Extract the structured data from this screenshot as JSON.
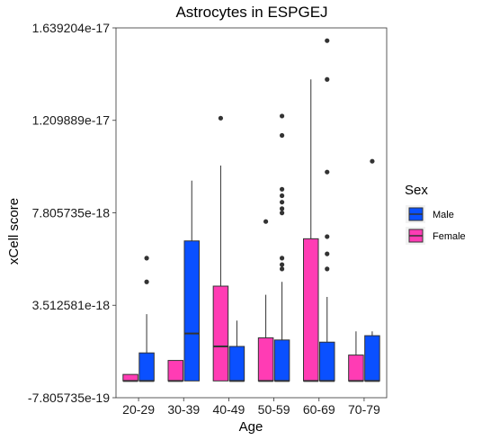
{
  "chart_data": {
    "type": "boxplot",
    "title": "Astrocytes in ESPGEJ",
    "xlabel": "Age",
    "ylabel": "xCell score",
    "y_tick_labels": [
      "-7.805735e-19",
      "3.512581e-18",
      "7.805735e-18",
      "1.209889e-17",
      "1.639204e-17"
    ],
    "y_tick_values": [
      -7.805735e-19,
      3.512581e-18,
      7.805735e-18,
      1.209889e-17,
      1.639204e-17
    ],
    "ylim": [
      -7.805735e-19,
      1.639204e-17
    ],
    "grid": false,
    "categories": [
      "20-29",
      "30-39",
      "40-49",
      "50-59",
      "60-69",
      "70-79"
    ],
    "legend": {
      "title": "Sex",
      "placement": "right",
      "entries": [
        {
          "label": "Male",
          "color": "#0a50ff"
        },
        {
          "label": "Female",
          "color": "#ff3cb4"
        }
      ]
    },
    "series": [
      {
        "name": "Female",
        "color": "#ff3cb4",
        "boxes": [
          {
            "category": "20-29",
            "whisker_low": 0,
            "q1": 0,
            "median": 0,
            "q3": 3e-19,
            "whisker_high": 3e-19,
            "outliers": []
          },
          {
            "category": "30-39",
            "whisker_low": 0,
            "q1": 0,
            "median": 0,
            "q3": 9.5e-19,
            "whisker_high": 9.5e-19,
            "outliers": []
          },
          {
            "category": "40-49",
            "whisker_low": 0,
            "q1": 0,
            "median": 1.6e-18,
            "q3": 4.4e-18,
            "whisker_high": 1e-17,
            "outliers": [
              1.22e-17
            ]
          },
          {
            "category": "50-59",
            "whisker_low": 0,
            "q1": 0,
            "median": 0,
            "q3": 2e-18,
            "whisker_high": 4e-18,
            "outliers": [
              7.4e-18
            ]
          },
          {
            "category": "60-69",
            "whisker_low": 0,
            "q1": 0,
            "median": 0,
            "q3": 6.6e-18,
            "whisker_high": 1.4e-17,
            "outliers": []
          },
          {
            "category": "70-79",
            "whisker_low": 0,
            "q1": 0,
            "median": 0,
            "q3": 1.2e-18,
            "whisker_high": 2.3e-18,
            "outliers": []
          }
        ]
      },
      {
        "name": "Male",
        "color": "#0a50ff",
        "boxes": [
          {
            "category": "20-29",
            "whisker_low": 0,
            "q1": 0,
            "median": 0,
            "q3": 1.3e-18,
            "whisker_high": 3.1e-18,
            "outliers": [
              5.7e-18,
              4.6e-18
            ]
          },
          {
            "category": "30-39",
            "whisker_low": 0,
            "q1": 0,
            "median": 2.2e-18,
            "q3": 6.5e-18,
            "whisker_high": 9.3e-18,
            "outliers": []
          },
          {
            "category": "40-49",
            "whisker_low": 0,
            "q1": 0,
            "median": 0,
            "q3": 1.6e-18,
            "whisker_high": 2.8e-18,
            "outliers": []
          },
          {
            "category": "50-59",
            "whisker_low": 0,
            "q1": 0,
            "median": 0,
            "q3": 1.9e-18,
            "whisker_high": 4.6e-18,
            "outliers": [
              1.23e-17,
              1.14e-17,
              8.9e-18,
              8.6e-18,
              8.3e-18,
              8e-18,
              7.8e-18,
              5.7e-18,
              5.4e-18,
              5.2e-18
            ]
          },
          {
            "category": "60-69",
            "whisker_low": 0,
            "q1": 0,
            "median": 0,
            "q3": 1.8e-18,
            "whisker_high": 3.9e-18,
            "outliers": [
              1.58e-17,
              1.4e-17,
              9.7e-18,
              6.7e-18,
              5.9e-18,
              5.2e-18
            ]
          },
          {
            "category": "70-79",
            "whisker_low": 0,
            "q1": 0,
            "median": 0,
            "q3": 2.1e-18,
            "whisker_high": 2.3e-18,
            "outliers": [
              1.02e-17
            ]
          }
        ]
      }
    ]
  }
}
